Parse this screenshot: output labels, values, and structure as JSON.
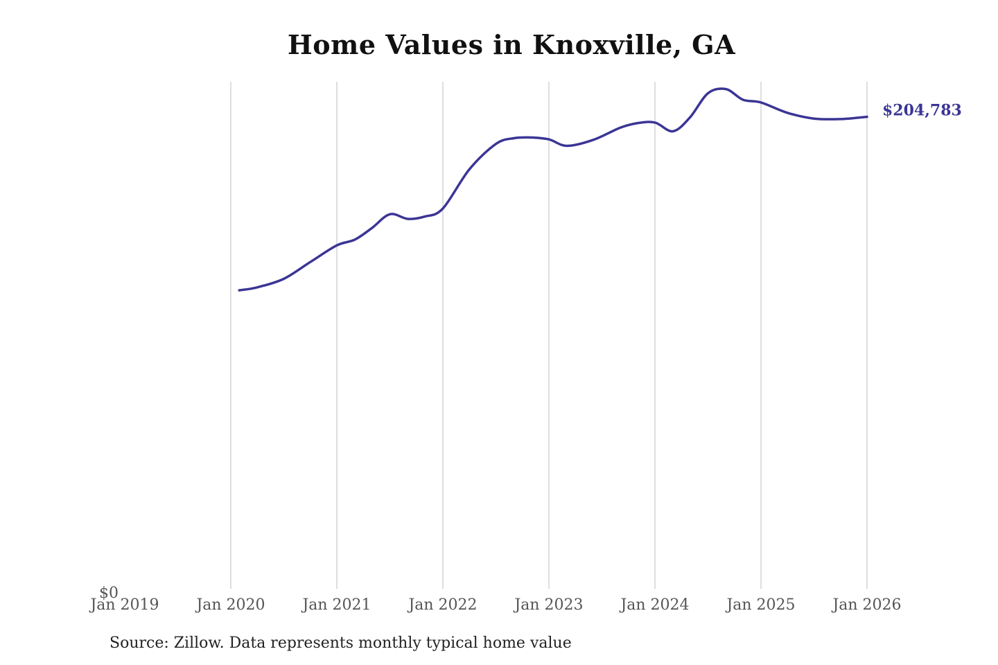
{
  "chart_data": {
    "type": "line",
    "title": "Home Values in Knoxville, GA",
    "xlabel": "",
    "ylabel": "",
    "x_ticks": [
      "Jan 2019",
      "Jan 2020",
      "Jan 2021",
      "Jan 2022",
      "Jan 2023",
      "Jan 2024",
      "Jan 2025",
      "Jan 2026"
    ],
    "x_tick_values": [
      2019.0,
      2020.0,
      2021.0,
      2022.0,
      2023.0,
      2024.0,
      2025.0,
      2026.0
    ],
    "xlim": [
      2019.0,
      2026.0
    ],
    "ylim": [
      0,
      220000
    ],
    "y_ticks": [
      "$0"
    ],
    "y_tick_values": [
      0
    ],
    "grid": "vertical",
    "line_color": "#3b3595",
    "end_label": "$204,783",
    "series": [
      {
        "x": [
          2020.08,
          2020.25,
          2020.5,
          2020.75,
          2021.0,
          2021.17,
          2021.33,
          2021.5,
          2021.67,
          2021.83,
          2022.0,
          2022.25,
          2022.5,
          2022.67,
          2022.83,
          2023.0,
          2023.17,
          2023.42,
          2023.67,
          2023.83,
          2024.0,
          2024.17,
          2024.33,
          2024.5,
          2024.67,
          2024.83,
          2025.0,
          2025.25,
          2025.5,
          2025.75,
          2026.0
        ],
        "y": [
          129500,
          130800,
          134500,
          141800,
          149000,
          151500,
          156500,
          162500,
          160500,
          161500,
          165000,
          182000,
          193000,
          195500,
          195800,
          195000,
          192200,
          194800,
          200000,
          202000,
          202300,
          198500,
          204500,
          215000,
          216800,
          212200,
          211000,
          206500,
          204000,
          203800,
          204783
        ]
      }
    ]
  },
  "source_note": "Source: Zillow. Data represents monthly typical home value"
}
